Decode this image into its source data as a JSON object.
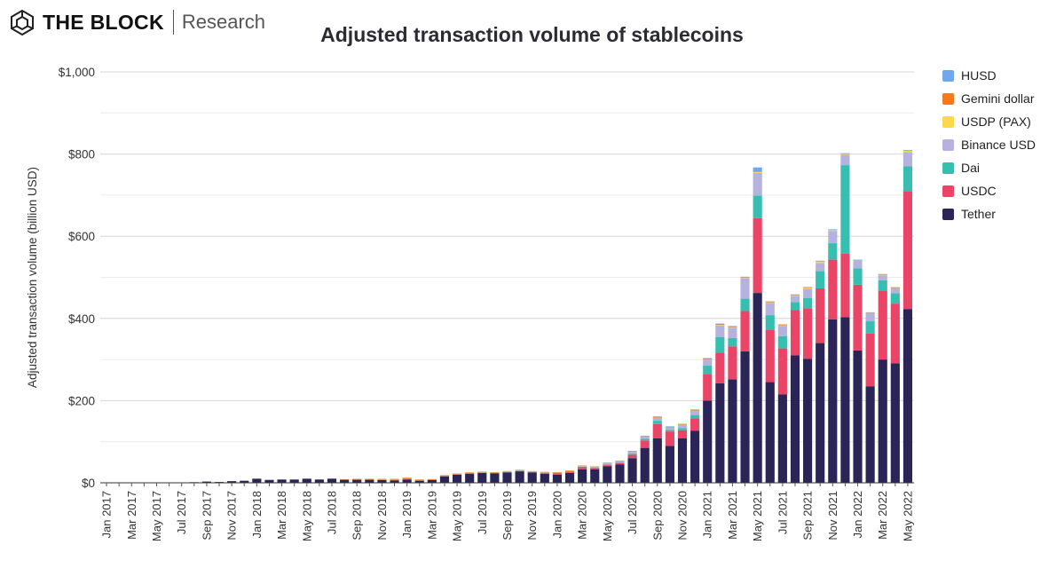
{
  "brand": {
    "name": "THE BLOCK",
    "sub": "Research"
  },
  "chart_data": {
    "type": "bar",
    "stacked": true,
    "title": "Adjusted transaction volume of stablecoins",
    "ylabel": "Adjusted transaction volume (billion USD)",
    "xlabel": "",
    "ylim": [
      0,
      1000
    ],
    "yticks": [
      0,
      200,
      400,
      600,
      800,
      1000
    ],
    "ytick_labels": [
      "$0",
      "$200",
      "$400",
      "$600",
      "$800",
      "$1,000"
    ],
    "grid": true,
    "legend_position": "right",
    "categories": [
      "Jan 2017",
      "Feb 2017",
      "Mar 2017",
      "Apr 2017",
      "May 2017",
      "Jun 2017",
      "Jul 2017",
      "Aug 2017",
      "Sep 2017",
      "Oct 2017",
      "Nov 2017",
      "Dec 2017",
      "Jan 2018",
      "Feb 2018",
      "Mar 2018",
      "Apr 2018",
      "May 2018",
      "Jun 2018",
      "Jul 2018",
      "Aug 2018",
      "Sep 2018",
      "Oct 2018",
      "Nov 2018",
      "Dec 2018",
      "Jan 2019",
      "Feb 2019",
      "Mar 2019",
      "Apr 2019",
      "May 2019",
      "Jun 2019",
      "Jul 2019",
      "Aug 2019",
      "Sep 2019",
      "Oct 2019",
      "Nov 2019",
      "Dec 2019",
      "Jan 2020",
      "Feb 2020",
      "Mar 2020",
      "Apr 2020",
      "May 2020",
      "Jun 2020",
      "Jul 2020",
      "Aug 2020",
      "Sep 2020",
      "Oct 2020",
      "Nov 2020",
      "Dec 2020",
      "Jan 2021",
      "Feb 2021",
      "Mar 2021",
      "Apr 2021",
      "May 2021",
      "Jun 2021",
      "Jul 2021",
      "Aug 2021",
      "Sep 2021",
      "Oct 2021",
      "Nov 2021",
      "Dec 2021",
      "Jan 2022",
      "Feb 2022",
      "Mar 2022",
      "Apr 2022",
      "May 2022"
    ],
    "xtick_labels": [
      "Jan 2017",
      "Mar 2017",
      "May 2017",
      "Jul 2017",
      "Sep 2017",
      "Nov 2017",
      "Jan 2018",
      "Mar 2018",
      "May 2018",
      "Jul 2018",
      "Sep 2018",
      "Nov 2018",
      "Jan 2019",
      "Mar 2019",
      "May 2019",
      "Jul 2019",
      "Sep 2019",
      "Nov 2019",
      "Jan 2020",
      "Mar 2020",
      "May 2020",
      "Jul 2020",
      "Sep 2020",
      "Nov 2020",
      "Jan 2021",
      "Mar 2021",
      "May 2021",
      "Jul 2021",
      "Sep 2021",
      "Nov 2021",
      "Jan 2022",
      "Mar 2022",
      "May 2022"
    ],
    "series": [
      {
        "name": "Tether",
        "color": "#2b2557",
        "values": [
          0.3,
          0.3,
          0.4,
          0.5,
          0.6,
          0.7,
          0.8,
          1.5,
          3,
          2,
          4,
          5,
          10,
          7,
          8,
          8,
          10,
          8,
          10,
          8,
          8,
          8,
          7,
          6,
          8,
          5,
          7,
          16,
          20,
          22,
          24,
          23,
          25,
          28,
          25,
          22,
          20,
          24,
          33,
          33,
          40,
          45,
          60,
          85,
          108,
          90,
          108,
          127,
          200,
          242,
          252,
          320,
          462,
          245,
          215,
          310,
          302,
          340,
          398,
          403,
          322,
          235,
          300,
          291,
          423
        ]
      },
      {
        "name": "USDC",
        "color": "#ea4566",
        "values": [
          0,
          0,
          0,
          0,
          0,
          0,
          0,
          0,
          0,
          0,
          0,
          0,
          0,
          0,
          0,
          0,
          0,
          0,
          0.5,
          0.5,
          0.5,
          0.5,
          1,
          2,
          3,
          2,
          1,
          1,
          1,
          2,
          1,
          1,
          1,
          1,
          1,
          2,
          3,
          3,
          5,
          3,
          3,
          3,
          8,
          18,
          35,
          35,
          20,
          30,
          65,
          75,
          80,
          98,
          182,
          128,
          112,
          110,
          123,
          133,
          145,
          155,
          160,
          128,
          168,
          145,
          287
        ]
      },
      {
        "name": "Dai",
        "color": "#36bfb0",
        "values": [
          0,
          0,
          0,
          0,
          0,
          0,
          0,
          0,
          0,
          0,
          0,
          0,
          0,
          0,
          0,
          0,
          0,
          0,
          0,
          0,
          0,
          0,
          0,
          0,
          0,
          0,
          0,
          0,
          0,
          0,
          0.5,
          0.5,
          0.5,
          0.5,
          0.5,
          0.5,
          1,
          1,
          1,
          1,
          2,
          2,
          3,
          4,
          8,
          4,
          5,
          8,
          20,
          38,
          20,
          30,
          55,
          35,
          30,
          20,
          25,
          42,
          40,
          215,
          40,
          30,
          25,
          25,
          60
        ]
      },
      {
        "name": "Binance USD",
        "color": "#b6b2e0",
        "values": [
          0,
          0,
          0,
          0,
          0,
          0,
          0,
          0,
          0,
          0,
          0,
          0,
          0,
          0,
          0,
          0,
          0,
          0,
          0,
          0,
          0,
          0,
          0,
          0,
          0,
          0,
          0,
          0.5,
          0.5,
          0.5,
          0.5,
          0.5,
          1,
          1,
          1,
          1,
          1,
          1,
          2,
          2,
          3,
          3,
          5,
          6,
          7,
          6,
          8,
          10,
          15,
          28,
          25,
          50,
          55,
          30,
          25,
          15,
          22,
          20,
          30,
          25,
          18,
          20,
          12,
          13,
          35
        ]
      },
      {
        "name": "USDP (PAX)",
        "color": "#fbd94a",
        "values": [
          0,
          0,
          0,
          0,
          0,
          0,
          0,
          0,
          0,
          0,
          0,
          0,
          0,
          0,
          0,
          0,
          0,
          0,
          0,
          0.5,
          0.5,
          0.5,
          0.5,
          0.5,
          0.5,
          0.5,
          0.5,
          0.5,
          0.5,
          0.5,
          0.5,
          0.5,
          0.5,
          0.5,
          0.5,
          0.5,
          0.5,
          0.5,
          0.5,
          0.5,
          0.5,
          0.5,
          0.5,
          0.5,
          1,
          1,
          1,
          1,
          1,
          2,
          2,
          2,
          3,
          2,
          2,
          2,
          3,
          4,
          3,
          3,
          2,
          1,
          2,
          1,
          3
        ]
      },
      {
        "name": "Gemini dollar",
        "color": "#f47a1f",
        "values": [
          0,
          0,
          0,
          0,
          0,
          0,
          0,
          0,
          0,
          0,
          0,
          0,
          0,
          0,
          0,
          0,
          0,
          0,
          0,
          0,
          0.5,
          0.5,
          1,
          1,
          1,
          0.5,
          0.5,
          0.5,
          0.5,
          0.5,
          0.5,
          0.5,
          0.5,
          0.5,
          0.5,
          0.5,
          0.5,
          0.5,
          0.5,
          0.5,
          0.5,
          0.5,
          0.5,
          0.5,
          0.5,
          0.5,
          0.5,
          0.5,
          0.5,
          0.5,
          0.5,
          0.5,
          0.5,
          0.5,
          0.5,
          0.5,
          1,
          1,
          0.5,
          0.5,
          0.5,
          0.5,
          0.5,
          0.5,
          1
        ]
      },
      {
        "name": "HUSD",
        "color": "#6fa8ef",
        "values": [
          0,
          0,
          0,
          0,
          0,
          0,
          0,
          0,
          0,
          0,
          0,
          0,
          0,
          0,
          0,
          0,
          0,
          0,
          0,
          0,
          0,
          0,
          0,
          0,
          0,
          0,
          0,
          0,
          0,
          0,
          0,
          0,
          0,
          0,
          0,
          0,
          0,
          0,
          0,
          0,
          0,
          0,
          0.5,
          0.5,
          2,
          1,
          1,
          2,
          2,
          2,
          2,
          1,
          10,
          1,
          1,
          1,
          0.5,
          0.5,
          0.5,
          0.5,
          0.5,
          0.5,
          0.5,
          0.5,
          0.5
        ]
      }
    ],
    "legend_order": [
      "HUSD",
      "Gemini dollar",
      "USDP (PAX)",
      "Binance USD",
      "Dai",
      "USDC",
      "Tether"
    ]
  }
}
